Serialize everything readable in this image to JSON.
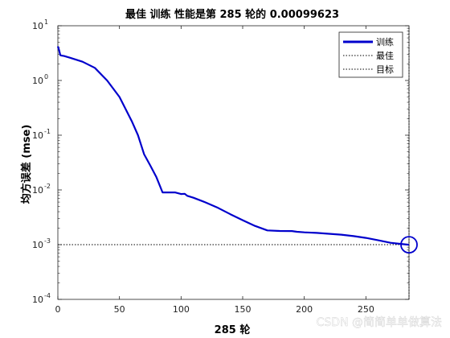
{
  "chart_data": {
    "type": "line",
    "title": "最佳 训练 性能是第 285 轮的 0.00099623",
    "xlabel": "285 轮",
    "ylabel": "均方误差 (mse)",
    "xlim": [
      0,
      285
    ],
    "ylim": [
      0.0001,
      10
    ],
    "yscale": "log",
    "x_ticks": [
      0,
      50,
      100,
      150,
      200,
      250
    ],
    "y_tick_exponents": [
      -4,
      -3,
      -2,
      -1,
      0,
      1
    ],
    "legend_position": "top-right",
    "series": [
      {
        "name": "训练",
        "color": "#0000cc",
        "style": "solid",
        "x": [
          0,
          1,
          2,
          3,
          5,
          10,
          20,
          30,
          40,
          50,
          60,
          65,
          70,
          75,
          80,
          85,
          88,
          95,
          100,
          103,
          105,
          110,
          120,
          130,
          140,
          150,
          160,
          170,
          180,
          190,
          194,
          200,
          210,
          220,
          230,
          240,
          250,
          260,
          270,
          280,
          285
        ],
        "values": [
          4.2,
          3.6,
          2.9,
          2.85,
          2.8,
          2.6,
          2.2,
          1.7,
          1.0,
          0.5,
          0.18,
          0.1,
          0.045,
          0.028,
          0.017,
          0.009,
          0.009,
          0.009,
          0.0084,
          0.0085,
          0.0078,
          0.0072,
          0.0059,
          0.0047,
          0.0036,
          0.0028,
          0.0022,
          0.00182,
          0.00178,
          0.00177,
          0.00172,
          0.00168,
          0.00164,
          0.00158,
          0.00152,
          0.00143,
          0.00133,
          0.0012,
          0.00108,
          0.00102,
          0.00099623
        ]
      },
      {
        "name": "最佳",
        "color": "#000000",
        "style": "dotted",
        "x": [
          285,
          285
        ],
        "values": [
          0.0001,
          10
        ]
      },
      {
        "name": "目标",
        "color": "#000000",
        "style": "dotted",
        "x": [
          0,
          285
        ],
        "values": [
          0.001,
          0.001
        ]
      }
    ],
    "best_point": {
      "x": 285,
      "y": 0.00099623,
      "color": "#0000cc"
    },
    "grid": false
  },
  "watermark": "CSDN @简简单单做算法"
}
